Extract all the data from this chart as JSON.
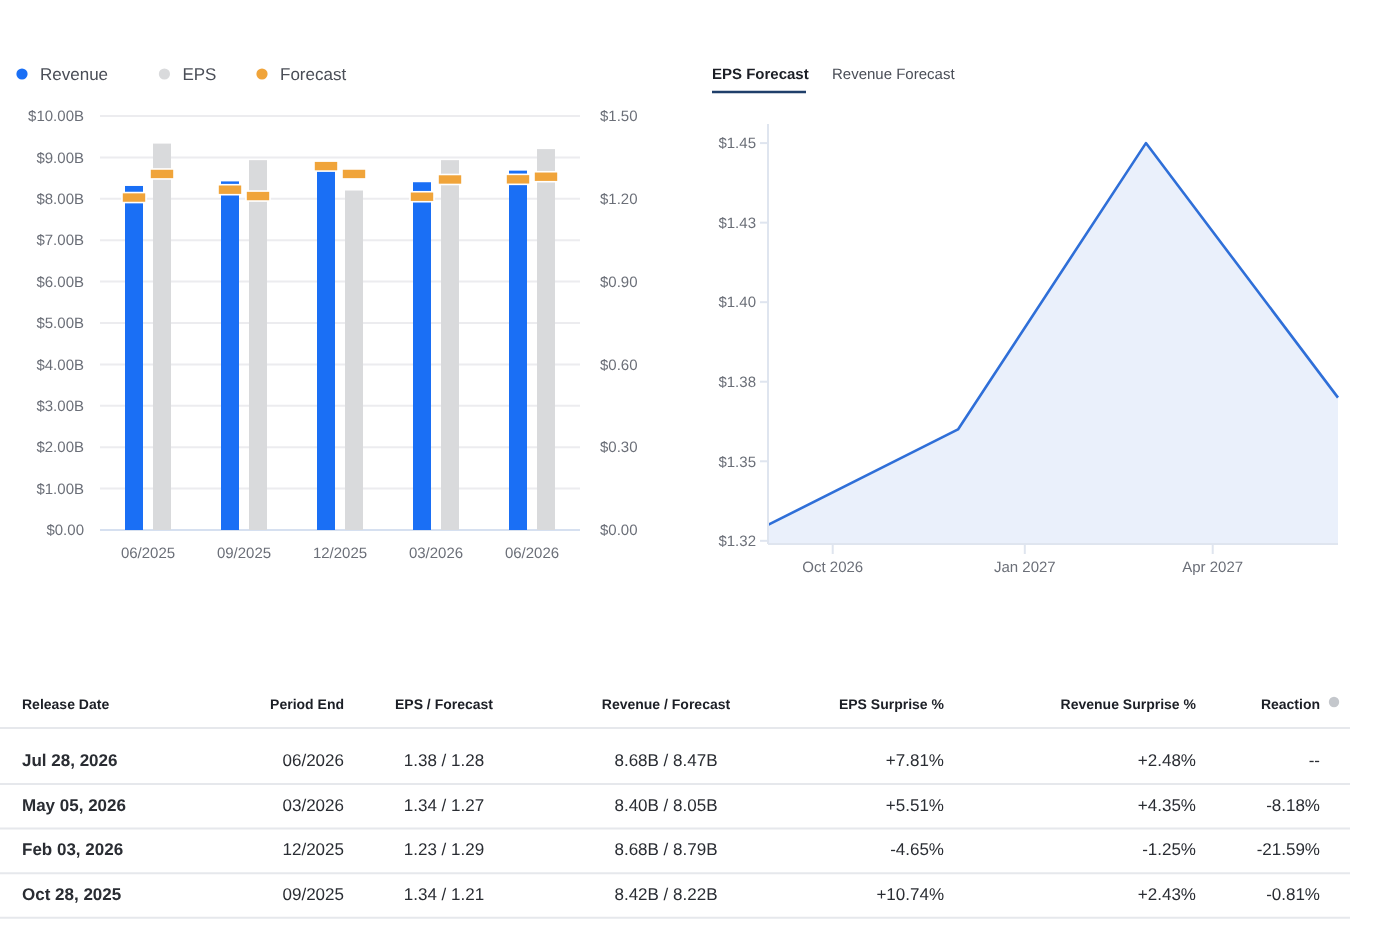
{
  "chart_data": [
    {
      "type": "bar",
      "categories": [
        "06/2025",
        "09/2025",
        "12/2025",
        "03/2026",
        "06/2026"
      ],
      "series": [
        {
          "name": "Revenue",
          "type": "bar",
          "color": "#1a6ff5",
          "values": [
            8.31,
            8.42,
            8.68,
            8.4,
            8.68
          ]
        },
        {
          "name": "EPS",
          "type": "bar",
          "axis": "y2",
          "color": "#d9dadc",
          "values": [
            1.4,
            1.34,
            1.23,
            1.34,
            1.38
          ]
        },
        {
          "name": "Forecast",
          "type": "scatter",
          "color": "#f0a43a",
          "values": [
            8.03,
            8.22,
            8.79,
            8.05,
            8.47
          ]
        },
        {
          "type": "scatter",
          "axis": "y2",
          "color": "#f0a43a",
          "values": [
            1.29,
            1.21,
            1.29,
            1.27,
            1.28
          ]
        }
      ],
      "ylim": [
        0,
        10
      ],
      "yticks": [
        {
          "value": 0,
          "label": "$0.00"
        },
        {
          "value": 1,
          "label": "$1.00B"
        },
        {
          "value": 2,
          "label": "$2.00B"
        },
        {
          "value": 3,
          "label": "$3.00B"
        },
        {
          "value": 4,
          "label": "$4.00B"
        },
        {
          "value": 5,
          "label": "$5.00B"
        },
        {
          "value": 6,
          "label": "$6.00B"
        },
        {
          "value": 7,
          "label": "$7.00B"
        },
        {
          "value": 8,
          "label": "$8.00B"
        },
        {
          "value": 9,
          "label": "$9.00B"
        },
        {
          "value": 10,
          "label": "$10.00B"
        }
      ],
      "y2lim": [
        0,
        1.5
      ],
      "y2ticks": [
        {
          "value": 0,
          "label": "$0.00"
        },
        {
          "value": 0.3,
          "label": "$0.30"
        },
        {
          "value": 0.6,
          "label": "$0.60"
        },
        {
          "value": 0.9,
          "label": "$0.90"
        },
        {
          "value": 1.2,
          "label": "$1.20"
        },
        {
          "value": 1.5,
          "label": "$1.50"
        }
      ],
      "grid": "y",
      "legend": "top left"
    },
    {
      "type": "area",
      "title": "EPS Forecast",
      "subtitle": "Revenue Forecast",
      "x": [
        "2026-08-31",
        "2026-11-30",
        "2027-02-28",
        "2027-05-31"
      ],
      "series": [
        {
          "color": "#2f6fd8",
          "values": [
            1.33,
            1.36,
            1.45,
            1.37
          ]
        }
      ],
      "xlim": [
        "2026-08-31",
        "2027-05-31"
      ],
      "xticks": [
        {
          "value": "2026-10-01",
          "label": "Oct 2026"
        },
        {
          "value": "2027-01-01",
          "label": "Jan 2027"
        },
        {
          "value": "2027-04-01",
          "label": "Apr 2027"
        }
      ],
      "ylim": [
        1.324,
        1.456
      ],
      "yticks": [
        {
          "value": 1.325,
          "label": "$1.32"
        },
        {
          "value": 1.35,
          "label": "$1.35"
        },
        {
          "value": 1.375,
          "label": "$1.38"
        },
        {
          "value": 1.4,
          "label": "$1.40"
        },
        {
          "value": 1.425,
          "label": "$1.43"
        },
        {
          "value": 1.45,
          "label": "$1.45"
        }
      ]
    },
    {
      "type": "other",
      "annotations": [
        "Release Date",
        "Period End",
        "EPS / Forecast",
        "Revenue / Forecast",
        "EPS Surprise %",
        "Revenue Surprise %",
        "Reaction",
        "Jul 28, 2026",
        "06/2026",
        "1.38 / 1.28",
        "8.68B / 8.47B",
        "+7.81%",
        "+2.48%",
        "--",
        "May 05, 2026",
        "03/2026",
        "1.34 / 1.27",
        "8.40B / 8.05B",
        "+5.51%",
        "+4.35%",
        "-8.18%",
        "Feb 03, 2026",
        "12/2025",
        "1.23 / 1.29",
        "8.68B / 8.79B",
        "-4.65%",
        "-1.25%",
        "-21.59%",
        "Oct 28, 2025",
        "09/2025",
        "1.34 / 1.21",
        "8.42B / 8.22B",
        "+10.74%",
        "+2.43%",
        "-0.81%"
      ]
    }
  ]
}
